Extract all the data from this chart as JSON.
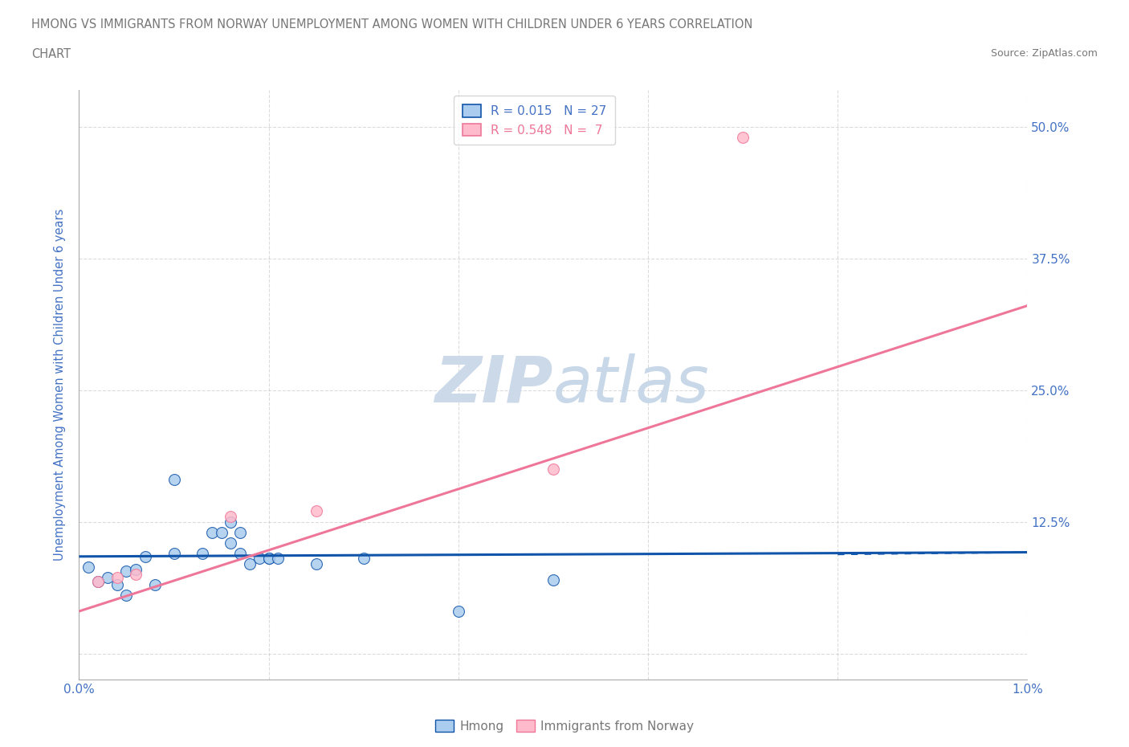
{
  "title_line1": "HMONG VS IMMIGRANTS FROM NORWAY UNEMPLOYMENT AMONG WOMEN WITH CHILDREN UNDER 6 YEARS CORRELATION",
  "title_line2": "CHART",
  "source_text": "Source: ZipAtlas.com",
  "ylabel": "Unemployment Among Women with Children Under 6 years",
  "xlim": [
    0.0,
    0.01
  ],
  "ylim": [
    -0.025,
    0.535
  ],
  "yticks": [
    0.0,
    0.125,
    0.25,
    0.375,
    0.5
  ],
  "ytick_labels": [
    "",
    "12.5%",
    "25.0%",
    "37.5%",
    "50.0%"
  ],
  "xticks": [
    0.0,
    0.002,
    0.004,
    0.006,
    0.008,
    0.01
  ],
  "xtick_labels": [
    "0.0%",
    "",
    "",
    "",
    "",
    "1.0%"
  ],
  "legend_r1": "R = 0.015   N = 27",
  "legend_r2": "R = 0.548   N =  7",
  "hmong_scatter_color": "#aaccee",
  "norway_scatter_color": "#ffbbcc",
  "trendline_hmong_color": "#1155aa",
  "trendline_norway_color": "#ee7799",
  "watermark_color": "#ccd9e8",
  "grid_color": "#cccccc",
  "title_color": "#777777",
  "tick_label_color": "#4472c4",
  "ylabel_color": "#4472c4",
  "legend_label1_color": "#4472c4",
  "legend_label2_color": "#ee7799",
  "background_color": "#ffffff",
  "hmong_line_x": [
    0.0,
    0.01
  ],
  "hmong_line_y": [
    0.092,
    0.096
  ],
  "norway_line_x": [
    0.0,
    0.01
  ],
  "norway_line_y": [
    0.04,
    0.33
  ],
  "hmong_x": [
    0.0001,
    0.0002,
    0.0003,
    0.0004,
    0.0005,
    0.0005,
    0.0006,
    0.0007,
    0.0008,
    0.001,
    0.001,
    0.0013,
    0.0014,
    0.0015,
    0.0016,
    0.0016,
    0.0017,
    0.0017,
    0.0018,
    0.0019,
    0.002,
    0.002,
    0.0021,
    0.0025,
    0.003,
    0.004,
    0.005
  ],
  "hmong_y": [
    0.082,
    0.068,
    0.072,
    0.065,
    0.078,
    0.055,
    0.08,
    0.092,
    0.065,
    0.165,
    0.095,
    0.095,
    0.115,
    0.115,
    0.105,
    0.125,
    0.095,
    0.115,
    0.085,
    0.09,
    0.09,
    0.09,
    0.09,
    0.085,
    0.09,
    0.04,
    0.07
  ],
  "norway_x": [
    0.0002,
    0.0004,
    0.0006,
    0.0016,
    0.0025,
    0.005,
    0.007
  ],
  "norway_y": [
    0.068,
    0.072,
    0.075,
    0.13,
    0.135,
    0.175,
    0.49
  ],
  "bottom_legend_labels": [
    "Hmong",
    "Immigrants from Norway"
  ]
}
